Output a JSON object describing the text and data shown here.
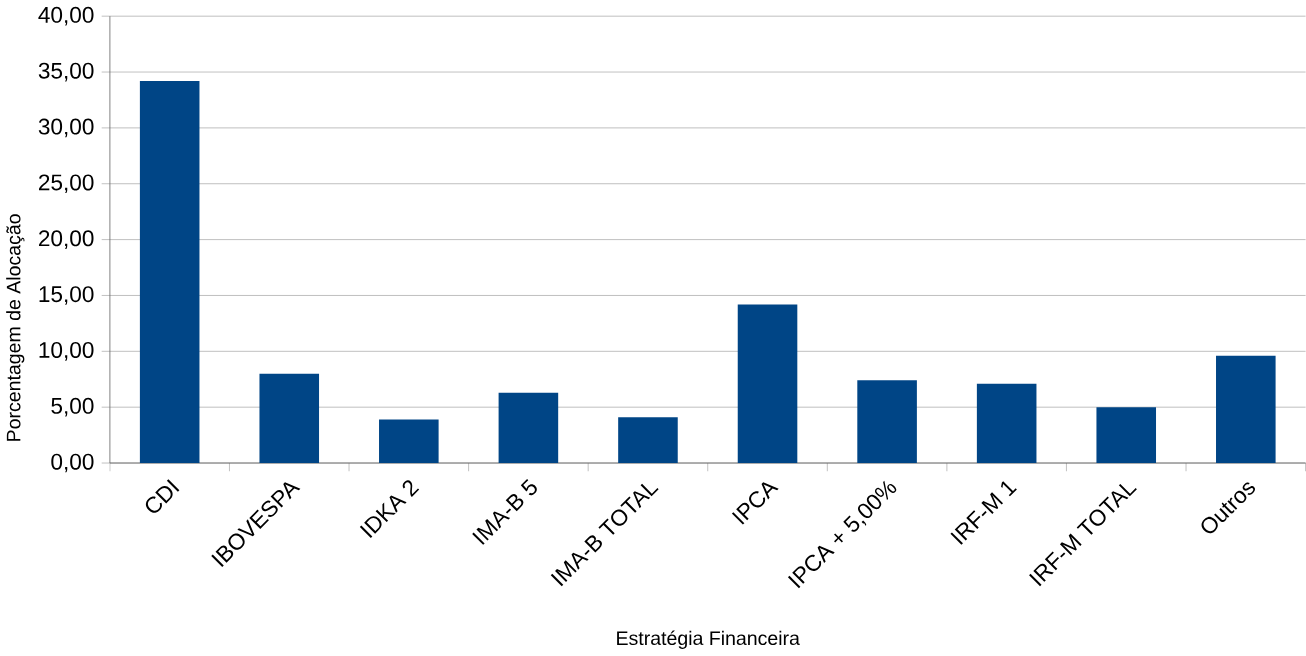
{
  "chart_data": {
    "type": "bar",
    "xlabel": "Estratégia Financeira",
    "ylabel": "Porcentagem de Alocação",
    "categories": [
      "CDI",
      "IBOVESPA",
      "IDKA 2",
      "IMA-B 5",
      "IMA-B TOTAL",
      "IPCA",
      "IPCA + 5,00%",
      "IRF-M 1",
      "IRF-M TOTAL",
      "Outros"
    ],
    "values": [
      34.2,
      8.0,
      3.9,
      6.3,
      4.1,
      14.2,
      7.4,
      7.1,
      5.0,
      9.6
    ],
    "color": "#004586",
    "ylim": [
      0,
      40
    ],
    "yticks": [
      {
        "value": 0,
        "label": "0,00"
      },
      {
        "value": 5,
        "label": "5,00"
      },
      {
        "value": 10,
        "label": "10,00"
      },
      {
        "value": 15,
        "label": "15,00"
      },
      {
        "value": 20,
        "label": "20,00"
      },
      {
        "value": 25,
        "label": "25,00"
      },
      {
        "value": 30,
        "label": "30,00"
      },
      {
        "value": 35,
        "label": "35,00"
      },
      {
        "value": 40,
        "label": "40,00"
      }
    ],
    "grid": "y"
  }
}
